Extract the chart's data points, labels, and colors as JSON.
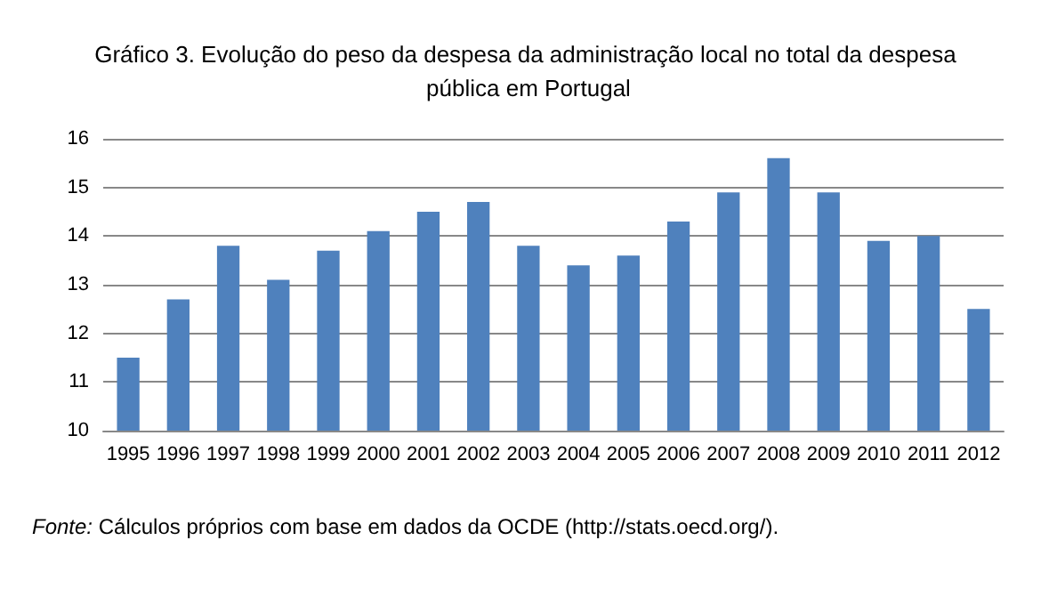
{
  "chart_data": {
    "type": "bar",
    "title": "Gráfico 3. Evolução do peso da despesa da administração local no total da despesa pública em Portugal",
    "categories": [
      "1995",
      "1996",
      "1997",
      "1998",
      "1999",
      "2000",
      "2001",
      "2002",
      "2003",
      "2004",
      "2005",
      "2006",
      "2007",
      "2008",
      "2009",
      "2010",
      "2011",
      "2012"
    ],
    "values": [
      11.5,
      12.7,
      13.8,
      13.1,
      13.7,
      14.1,
      14.5,
      14.7,
      13.8,
      13.4,
      13.6,
      14.3,
      14.9,
      15.6,
      14.9,
      13.9,
      14.0,
      12.5
    ],
    "color": "#4f81bd",
    "ylim": [
      10,
      16
    ],
    "yticks": [
      10,
      11,
      12,
      13,
      14,
      15,
      16
    ],
    "grid": "y",
    "annotations": [
      "Fonte: Cálculos próprios com base em dados da OCDE (http://stats.oecd.org/)."
    ]
  }
}
